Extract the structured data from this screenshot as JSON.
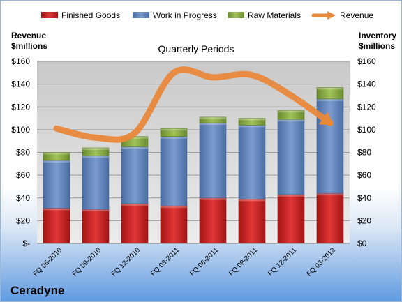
{
  "company": "Ceradyne",
  "chart_data": {
    "type": "bar",
    "stacked": true,
    "title": "Quarterly Periods",
    "left_axis_label_line1": "Revenue",
    "left_axis_label_line2": "$millions",
    "right_axis_label_line1": "Inventory",
    "right_axis_label_line2": "$millions",
    "categories": [
      "FQ 06-2010",
      "FQ 09-2010",
      "FQ 12-2010",
      "FQ 03-2011",
      "FQ 06-2011",
      "FQ 09-2011",
      "FQ 12-2011",
      "FQ 03-2012"
    ],
    "left_ticks": [
      "$-",
      "$20",
      "$40",
      "$60",
      "$80",
      "$100",
      "$120",
      "$140",
      "$160"
    ],
    "right_ticks": [
      "$0",
      "$20",
      "$40",
      "$60",
      "$80",
      "$100",
      "$120",
      "$140",
      "$160"
    ],
    "ylim": [
      0,
      160
    ],
    "grid": true,
    "legend_position": "top",
    "series": [
      {
        "name": "Finished Goods",
        "color": "#cc2222",
        "values": [
          31,
          30,
          35,
          33,
          40,
          39,
          43,
          44
        ]
      },
      {
        "name": "Work in Progress",
        "color": "#5b80b8",
        "values": [
          42,
          47,
          50,
          61,
          66,
          65,
          66,
          83
        ]
      },
      {
        "name": "Raw Materials",
        "color": "#7a9c3a",
        "values": [
          7,
          7,
          9,
          7,
          5,
          6,
          8,
          10
        ]
      }
    ],
    "line_series": {
      "name": "Revenue",
      "color": "#e8883a",
      "values": [
        101,
        93,
        97,
        150,
        146,
        148,
        130,
        106
      ]
    }
  }
}
